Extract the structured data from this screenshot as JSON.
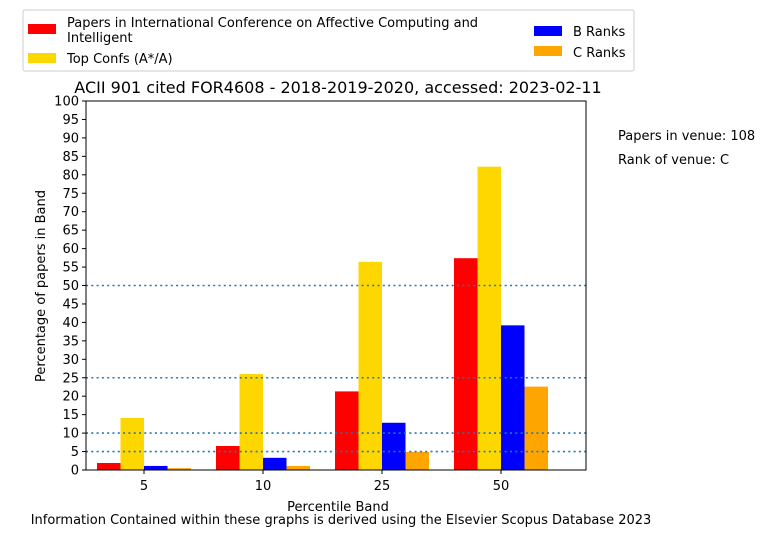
{
  "chart_data": {
    "type": "bar",
    "title": "ACII 901 cited FOR4608 - 2018-2019-2020, accessed: 2023-02-11",
    "xlabel": "Percentile Band",
    "ylabel": "Percentage of papers in Band",
    "ylim": [
      0,
      100
    ],
    "yticks": [
      "0",
      "5",
      "10",
      "15",
      "20",
      "25",
      "30",
      "35",
      "40",
      "45",
      "50",
      "55",
      "60",
      "65",
      "70",
      "75",
      "80",
      "85",
      "90",
      "95",
      "100"
    ],
    "categories": [
      "5",
      "10",
      "25",
      "50"
    ],
    "series": [
      {
        "name": "Papers in International Conference on Affective Computing and Intelligent",
        "color": "#ff0000",
        "values": [
          1.9,
          6.5,
          21.3,
          57.4
        ]
      },
      {
        "name": "Top Confs (A*/A)",
        "color": "#ffd700",
        "values": [
          14.1,
          26.0,
          56.4,
          82.2
        ]
      },
      {
        "name": "B Ranks",
        "color": "#0000ff",
        "values": [
          1.1,
          3.3,
          12.8,
          39.2
        ]
      },
      {
        "name": "C Ranks",
        "color": "#ffa500",
        "values": [
          0.5,
          1.1,
          4.9,
          22.6
        ]
      }
    ],
    "reference_lines": [
      5,
      10,
      25,
      50
    ],
    "reference_line_color": "#1f77b4",
    "legend_position": "top"
  },
  "legend": {
    "red_line1": "Papers in International Conference on Affective Computing and",
    "red_line2": "Intelligent",
    "gold": "Top Confs (A*/A)",
    "blue": "B Ranks",
    "orange": "C Ranks"
  },
  "annotations": {
    "papers": "Papers in venue: 108",
    "rank": "Rank of venue: C"
  },
  "footer": "Information Contained within these graphs is derived using the Elsevier Scopus Database 2023"
}
